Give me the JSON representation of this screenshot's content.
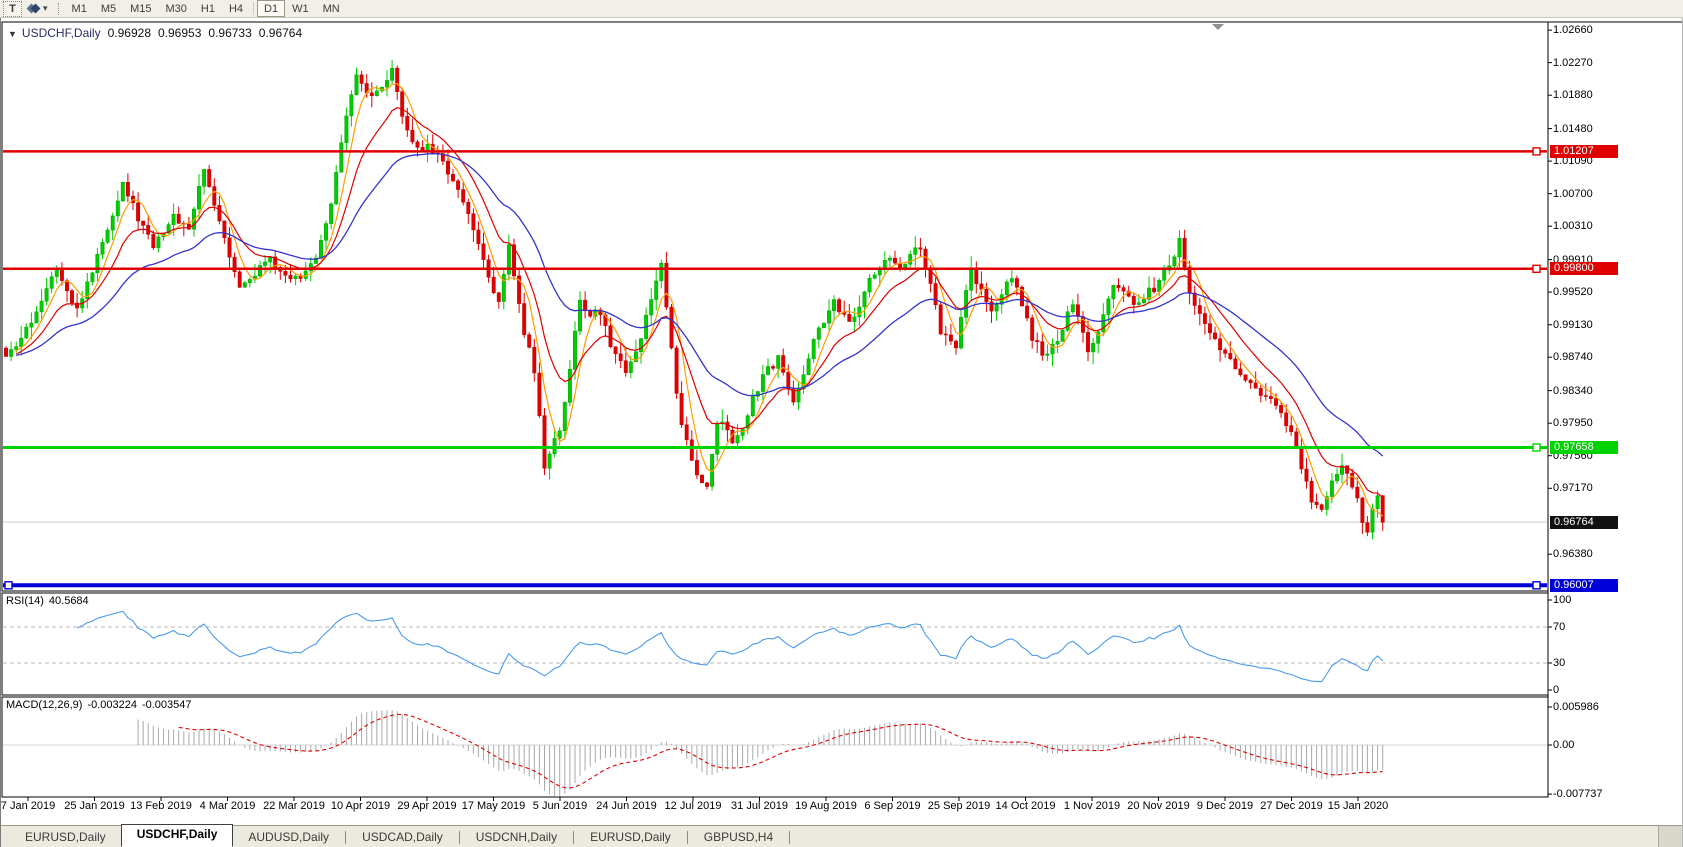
{
  "toolbar": {
    "text_tool_label": "T",
    "icons": {
      "collapse": "▼",
      "caret": "▾"
    },
    "timeframes": [
      "M1",
      "M5",
      "M15",
      "M30",
      "H1",
      "H4",
      "D1",
      "W1",
      "MN"
    ],
    "active_timeframe": "D1"
  },
  "chart": {
    "symbol_title": "USDCHF,Daily",
    "ohlc": {
      "open": "0.96928",
      "high": "0.96953",
      "low": "0.96733",
      "close": "0.96764"
    }
  },
  "rsi_pane": {
    "label": "RSI(14)",
    "value": "40.5684"
  },
  "macd_pane": {
    "label": "MACD(12,26,9)",
    "value1": "-0.003224",
    "value2": "-0.003547"
  },
  "tabs": [
    {
      "label": "EURUSD,Daily",
      "active": false
    },
    {
      "label": "USDCHF,Daily",
      "active": true
    },
    {
      "label": "AUDUSD,Daily",
      "active": false
    },
    {
      "label": "USDCAD,Daily",
      "active": false
    },
    {
      "label": "USDCNH,Daily",
      "active": false
    },
    {
      "label": "EURUSD,Daily",
      "active": false
    },
    {
      "label": "GBPUSD,H4",
      "active": false
    }
  ],
  "chart_data": {
    "type": "candlestick",
    "symbol": "USDCHF",
    "timeframe": "Daily",
    "candle_count": 272,
    "view_price_top": 1.02757,
    "view_price_bottom": 0.95939,
    "y_axis_ticks": [
      "1.02660",
      "1.02270",
      "1.01880",
      "1.01480",
      "1.01090",
      "1.00700",
      "1.00310",
      "0.99910",
      "0.99520",
      "0.99130",
      "0.98740",
      "0.98340",
      "0.97950",
      "0.97560",
      "0.97170",
      "0.96380"
    ],
    "x_axis_dates": [
      "7 Jan 2019",
      "25 Jan 2019",
      "13 Feb 2019",
      "4 Mar 2019",
      "22 Mar 2019",
      "10 Apr 2019",
      "29 Apr 2019",
      "17 May 2019",
      "5 Jun 2019",
      "24 Jun 2019",
      "12 Jul 2019",
      "31 Jul 2019",
      "19 Aug 2019",
      "6 Sep 2019",
      "25 Sep 2019",
      "14 Oct 2019",
      "1 Nov 2019",
      "20 Nov 2019",
      "9 Dec 2019",
      "27 Dec 2019",
      "15 Jan 2020"
    ],
    "horizontal_levels": [
      {
        "value": "1.01207",
        "price": 1.01207,
        "color": "#e10000",
        "width": 2.5
      },
      {
        "value": "0.99800",
        "price": 0.998,
        "color": "#e10000",
        "width": 2.5
      },
      {
        "value": "0.97658",
        "price": 0.97658,
        "color": "#00d300",
        "width": 3
      },
      {
        "value": "0.96007",
        "price": 0.96007,
        "color": "#0000d9",
        "width": 4
      }
    ],
    "current_price": {
      "value": "0.96764",
      "price": 0.96764
    },
    "candle_colors": {
      "up": "#00cc00",
      "up_stroke": "#00a400",
      "down": "#e00000",
      "down_stroke": "#c00000"
    },
    "moving_averages": [
      {
        "name": "fast",
        "method": "sma",
        "period": 5,
        "color": "#ff9d00"
      },
      {
        "name": "medium",
        "method": "ema",
        "period": 12,
        "color": "#e00000"
      },
      {
        "name": "slow",
        "method": "ema",
        "period": 30,
        "color": "#3434cf"
      }
    ],
    "rsi": {
      "period": 14,
      "color": "#4a9bec",
      "levels": [
        "100",
        "70",
        "30",
        "0"
      ],
      "level_values": [
        100,
        70,
        30,
        0
      ],
      "current": 40.5684
    },
    "macd": {
      "fast": 12,
      "slow": 26,
      "signal": 9,
      "histogram_color": "#a9a9a9",
      "signal_color": "#e00000",
      "scale_labels": [
        "0.005986",
        "0.00",
        "-0.007737"
      ],
      "scale_values": [
        0.005986,
        0,
        -0.007737
      ]
    },
    "price_path": [
      [
        0,
        0.987
      ],
      [
        4,
        0.9905
      ],
      [
        10,
        0.9985
      ],
      [
        14,
        0.993
      ],
      [
        19,
        1.001
      ],
      [
        23,
        1.0085
      ],
      [
        26,
        1.004
      ],
      [
        29,
        1.001
      ],
      [
        33,
        1.0042
      ],
      [
        36,
        1.003
      ],
      [
        39,
        1.0098
      ],
      [
        43,
        1.002
      ],
      [
        46,
        0.9958
      ],
      [
        52,
        0.999
      ],
      [
        55,
        0.997
      ],
      [
        58,
        0.9968
      ],
      [
        61,
        0.9996
      ],
      [
        64,
        1.006
      ],
      [
        67,
        1.016
      ],
      [
        69,
        1.021
      ],
      [
        71,
        1.019
      ],
      [
        73,
        1.0188
      ],
      [
        76,
        1.0215
      ],
      [
        78,
        1.016
      ],
      [
        80,
        1.013
      ],
      [
        84,
        1.0122
      ],
      [
        86,
        1.0105
      ],
      [
        88,
        1.0088
      ],
      [
        91,
        1.005
      ],
      [
        93,
        1.0005
      ],
      [
        95,
        0.9975
      ],
      [
        97,
        0.9938
      ],
      [
        99,
        1.0008
      ],
      [
        102,
        0.9905
      ],
      [
        104,
        0.986
      ],
      [
        106,
        0.974
      ],
      [
        109,
        0.9788
      ],
      [
        111,
        0.9862
      ],
      [
        113,
        0.994
      ],
      [
        115,
        0.9925
      ],
      [
        117,
        0.9928
      ],
      [
        119,
        0.989
      ],
      [
        122,
        0.9858
      ],
      [
        125,
        0.9898
      ],
      [
        127,
        0.9948
      ],
      [
        129,
        0.9985
      ],
      [
        131,
        0.988
      ],
      [
        133,
        0.979
      ],
      [
        136,
        0.9732
      ],
      [
        138,
        0.972
      ],
      [
        140,
        0.9798
      ],
      [
        142,
        0.9786
      ],
      [
        143,
        0.9768
      ],
      [
        145,
        0.979
      ],
      [
        147,
        0.9828
      ],
      [
        150,
        0.9858
      ],
      [
        152,
        0.9874
      ],
      [
        155,
        0.9822
      ],
      [
        157,
        0.9855
      ],
      [
        159,
        0.9893
      ],
      [
        161,
        0.992
      ],
      [
        163,
        0.994
      ],
      [
        166,
        0.9912
      ],
      [
        168,
        0.993
      ],
      [
        170,
        0.9968
      ],
      [
        173,
        0.9992
      ],
      [
        176,
        0.9984
      ],
      [
        178,
        0.9996
      ],
      [
        180,
        1.0004
      ],
      [
        182,
        0.996
      ],
      [
        184,
        0.9905
      ],
      [
        187,
        0.989
      ],
      [
        190,
        0.9978
      ],
      [
        192,
        0.9952
      ],
      [
        194,
        0.993
      ],
      [
        196,
        0.9952
      ],
      [
        198,
        0.9973
      ],
      [
        200,
        0.994
      ],
      [
        202,
        0.9896
      ],
      [
        204,
        0.988
      ],
      [
        206,
        0.9886
      ],
      [
        208,
        0.991
      ],
      [
        210,
        0.994
      ],
      [
        213,
        0.9878
      ],
      [
        215,
        0.9902
      ],
      [
        218,
        0.9962
      ],
      [
        220,
        0.995
      ],
      [
        222,
        0.9935
      ],
      [
        224,
        0.9948
      ],
      [
        226,
        0.9958
      ],
      [
        228,
        0.9975
      ],
      [
        230,
        0.9992
      ],
      [
        231,
        1.0018
      ],
      [
        233,
        0.9952
      ],
      [
        235,
        0.9928
      ],
      [
        237,
        0.9905
      ],
      [
        239,
        0.9888
      ],
      [
        241,
        0.9868
      ],
      [
        243,
        0.9855
      ],
      [
        245,
        0.984
      ],
      [
        247,
        0.983
      ],
      [
        249,
        0.982
      ],
      [
        251,
        0.9805
      ],
      [
        253,
        0.9788
      ],
      [
        255,
        0.974
      ],
      [
        257,
        0.97
      ],
      [
        259,
        0.9687
      ],
      [
        261,
        0.9728
      ],
      [
        263,
        0.9742
      ],
      [
        265,
        0.9718
      ],
      [
        266,
        0.97
      ],
      [
        268,
        0.9662
      ],
      [
        269,
        0.969
      ],
      [
        270,
        0.9705
      ],
      [
        271,
        0.96764
      ]
    ]
  }
}
